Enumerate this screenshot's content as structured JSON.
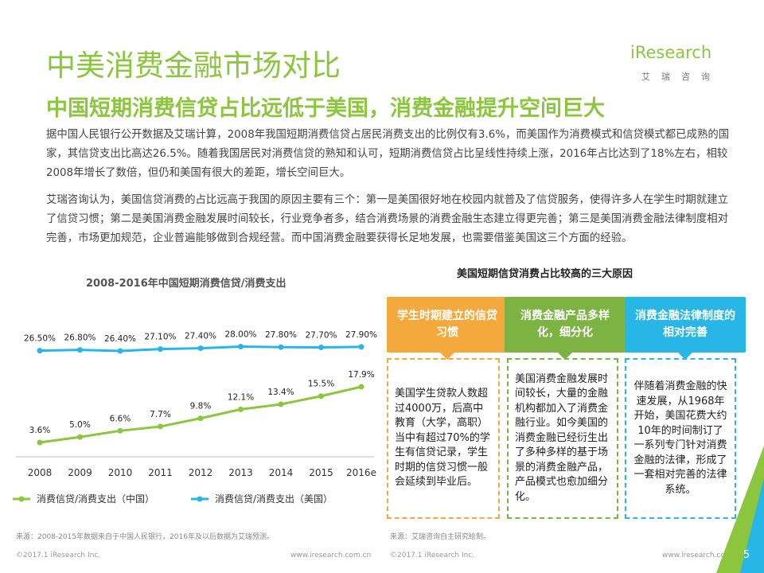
{
  "title": "中美消费金融市场对比",
  "subtitle": "中国短期消费信贷占比远低于美国，消费金融提升空间巨大",
  "logo": {
    "brand": "iResearch",
    "sub": "艾瑞咨询"
  },
  "paragraphs": [
    "据中国人民银行公开数据及艾瑞计算，2008年我国短期消费信贷占居民消费支出的比例仅有3.6%，而美国作为消费模式和信贷模式都已成熟的国家，其信贷支出比高达26.5%。随着我国居民对消费信贷的熟知和认可，短期消费信贷占比呈线性持续上涨，2016年占比达到了18%左右，相较2008年增长了数倍，但仍和美国有很大的差距，增长空间巨大。",
    "艾瑞咨询认为，美国信贷消费的占比远高于我国的原因主要有三个：第一是美国很好地在校园内就普及了信贷服务，使得许多人在学生时期就建立了信贷习惯；第二是美国消费金融发展时间较长，行业竞争者多，结合消费场景的消费金融生态建立得更完善；第三是美国消费金融法律制度相对完善，市场更加规范，企业普遍能够做到合规经营。而中国消费金融要获得长足地发展，也需要借鉴美国这三个方面的经验。"
  ],
  "chart_data": {
    "type": "line",
    "title": "2008-2016年中国短期消费信贷/消费支出",
    "categories": [
      "2008",
      "2009",
      "2010",
      "2011",
      "2012",
      "2013",
      "2014",
      "2015",
      "2016e"
    ],
    "series": [
      {
        "name": "消费信贷/消费支出（中国）",
        "color": "#8cc63f",
        "values": [
          3.6,
          5.0,
          6.6,
          7.7,
          9.8,
          12.1,
          13.4,
          15.5,
          17.9
        ],
        "labels": [
          "3.6%",
          "5.0%",
          "6.6%",
          "7.7%",
          "9.8%",
          "12.1%",
          "13.4%",
          "15.5%",
          "17.9%"
        ]
      },
      {
        "name": "消费信贷/消费支出（美国）",
        "color": "#27b6e6",
        "values": [
          26.5,
          26.8,
          26.4,
          27.1,
          27.4,
          28.0,
          27.8,
          27.7,
          27.9
        ],
        "labels": [
          "26.50%",
          "26.80%",
          "26.40%",
          "27.10%",
          "27.40%",
          "28.00%",
          "27.80%",
          "27.70%",
          "27.90%"
        ]
      }
    ]
  },
  "reasons": {
    "title": "美国短期信贷消费占比较高的三大原因",
    "items": [
      {
        "head": "学生时期建立的信贷习惯",
        "color": "#f4a93c",
        "body": "美国学生贷款人数超过4000万，后高中教育（大学，高职）当中有超过70%的学生有信贷记录，学生时期的信贷习惯一般会延续到毕业后。"
      },
      {
        "head": "消费金融产品多样化，细分化",
        "color": "#7cb342",
        "body": "美国消费金融发展时间较长，大量的金融机构都加入了消费金融行业。如今美国的消费金融已经衍生出了多种多样的基于场景的消费金融产品，产品模式也愈加细分化。"
      },
      {
        "head": "消费金融法律制度的相对完善",
        "color": "#27b6e6",
        "body": "伴随着消费金融的快速发展，从1968年开始，美国花费大约10年的时间制订了一系列专门针对消费金融的法律，形成了一套相对完善的法律系统。"
      }
    ]
  },
  "sources": {
    "left": "来源：2008-2015年数据来自于中国人民银行，2016年及以后数据为艾瑞预测。",
    "right": "来源：艾瑞咨询自主研究绘制。"
  },
  "footer": {
    "copyright_left": "©2017.1 iResearch Inc.",
    "url_left": "www.iresearch.com.cn",
    "copyright_right": "©2017.1 iResearch Inc.",
    "url_right": "www.iresearch.com.cn",
    "page": "5"
  }
}
